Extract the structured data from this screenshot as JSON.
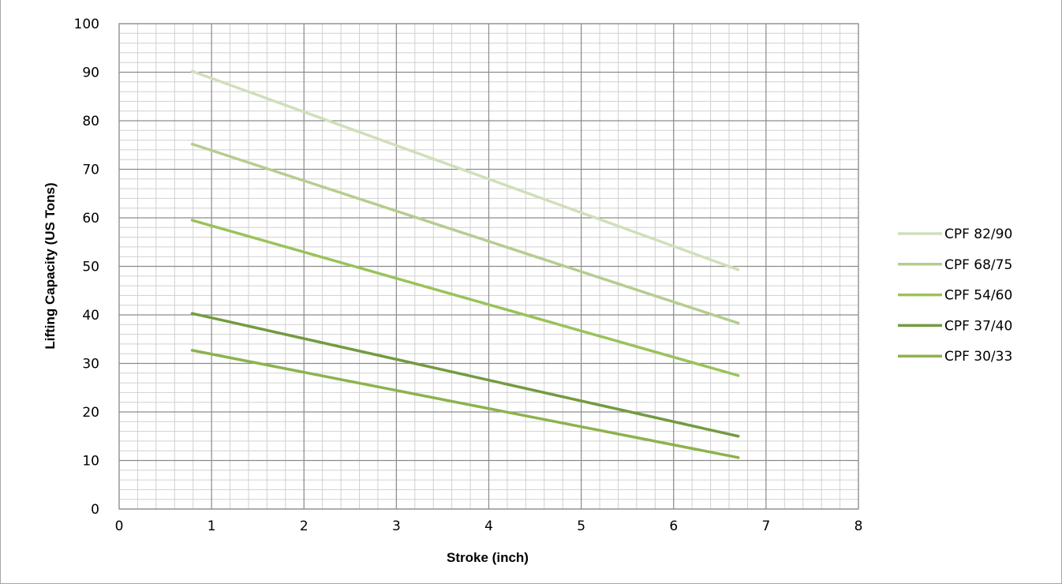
{
  "chart_data": {
    "type": "line",
    "title": "",
    "xlabel": "Stroke (inch)",
    "ylabel": "Lifting Capacity (US Tons)",
    "xlim": [
      0,
      8
    ],
    "ylim": [
      0,
      100
    ],
    "x_ticks": [
      "0",
      "1",
      "2",
      "3",
      "4",
      "5",
      "6",
      "7",
      "8"
    ],
    "y_ticks": [
      "0",
      "10",
      "20",
      "30",
      "40",
      "50",
      "60",
      "70",
      "80",
      "90",
      "100"
    ],
    "grid": true,
    "legend_position": "right",
    "series": [
      {
        "name": "CPF 82/90",
        "color": "#d0dfbb",
        "x": [
          0.79,
          6.7
        ],
        "y": [
          90.2,
          49.3
        ]
      },
      {
        "name": "CPF 68/75",
        "color": "#b5cd8f",
        "x": [
          0.79,
          6.7
        ],
        "y": [
          75.2,
          38.3
        ]
      },
      {
        "name": "CPF 54/60",
        "color": "#9bc25a",
        "x": [
          0.79,
          6.7
        ],
        "y": [
          59.5,
          27.5
        ]
      },
      {
        "name": "CPF 37/40",
        "color": "#739b40",
        "x": [
          0.79,
          6.7
        ],
        "y": [
          40.3,
          15.0
        ]
      },
      {
        "name": "CPF 30/33",
        "color": "#8db24e",
        "x": [
          0.79,
          6.7
        ],
        "y": [
          32.7,
          10.6
        ]
      }
    ]
  }
}
